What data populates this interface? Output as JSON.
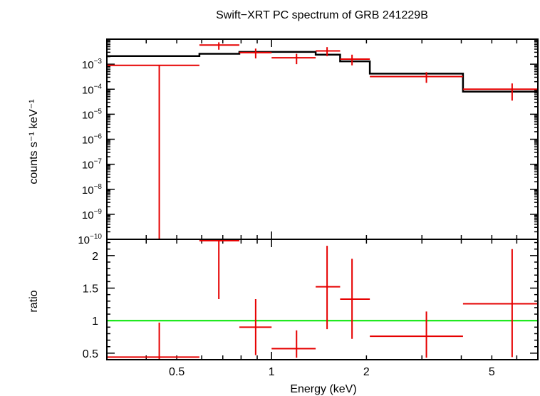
{
  "chart_data": [
    {
      "type": "scatter",
      "panel": "spectrum",
      "title": "Swift−XRT PC spectrum of GRB 241229B",
      "ylabel": "counts s⁻¹ keV⁻¹",
      "xscale": "log",
      "yscale": "log",
      "xlim": [
        0.3,
        7.0
      ],
      "ylim": [
        1e-10,
        0.01
      ],
      "y_ticks": [
        {
          "value": 0.001,
          "mant": "10",
          "exp": "−3"
        },
        {
          "value": 0.0001,
          "mant": "10",
          "exp": "−4"
        },
        {
          "value": 1e-05,
          "mant": "10",
          "exp": "−5"
        },
        {
          "value": 1e-06,
          "mant": "10",
          "exp": "−6"
        },
        {
          "value": 1e-07,
          "mant": "10",
          "exp": "−7"
        },
        {
          "value": 1e-08,
          "mant": "10",
          "exp": "−8"
        },
        {
          "value": 1e-09,
          "mant": "10",
          "exp": "−9"
        },
        {
          "value": 1e-10,
          "mant": "10",
          "exp": "−10"
        }
      ],
      "data": [
        {
          "x": 0.44,
          "xlo": 0.3,
          "xhi": 0.59,
          "y": 0.0009,
          "ylo": 1e-10,
          "yhi": 0.0009
        },
        {
          "x": 0.68,
          "xlo": 0.59,
          "xhi": 0.79,
          "y": 0.0058,
          "ylo": 0.0038,
          "yhi": 0.0075
        },
        {
          "x": 0.89,
          "xlo": 0.79,
          "xhi": 1.0,
          "y": 0.0029,
          "ylo": 0.0017,
          "yhi": 0.0042
        },
        {
          "x": 1.2,
          "xlo": 1.0,
          "xhi": 1.38,
          "y": 0.0018,
          "ylo": 0.001,
          "yhi": 0.0026
        },
        {
          "x": 1.5,
          "xlo": 1.38,
          "xhi": 1.65,
          "y": 0.0034,
          "ylo": 0.0021,
          "yhi": 0.0048
        },
        {
          "x": 1.8,
          "xlo": 1.65,
          "xhi": 2.05,
          "y": 0.0016,
          "ylo": 0.0009,
          "yhi": 0.0024
        },
        {
          "x": 3.1,
          "xlo": 2.05,
          "xhi": 4.05,
          "y": 0.00032,
          "ylo": 0.00018,
          "yhi": 0.00048
        },
        {
          "x": 5.8,
          "xlo": 4.05,
          "xhi": 7.0,
          "y": 0.0001,
          "ylo": 3.5e-05,
          "yhi": 0.00017
        }
      ],
      "model_steps": [
        {
          "xlo": 0.3,
          "xhi": 0.59,
          "y": 0.0021
        },
        {
          "xlo": 0.59,
          "xhi": 0.79,
          "y": 0.0026
        },
        {
          "xlo": 0.79,
          "xhi": 1.0,
          "y": 0.0031
        },
        {
          "xlo": 1.0,
          "xhi": 1.38,
          "y": 0.0031
        },
        {
          "xlo": 1.38,
          "xhi": 1.65,
          "y": 0.0024
        },
        {
          "xlo": 1.65,
          "xhi": 2.05,
          "y": 0.0013
        },
        {
          "xlo": 2.05,
          "xhi": 4.05,
          "y": 0.00042
        },
        {
          "xlo": 4.05,
          "xhi": 7.0,
          "y": 8e-05
        }
      ],
      "colors": {
        "data": "#e60000",
        "model": "#000000"
      }
    },
    {
      "type": "scatter",
      "panel": "ratio",
      "xlabel": "Energy (keV)",
      "ylabel": "ratio",
      "xscale": "log",
      "xlim": [
        0.3,
        7.0
      ],
      "ylim": [
        0.4,
        2.25
      ],
      "x_ticks": [
        {
          "value": 0.5,
          "label": "0.5"
        },
        {
          "value": 1,
          "label": "1"
        },
        {
          "value": 2,
          "label": "2"
        },
        {
          "value": 5,
          "label": "5"
        }
      ],
      "y_ticks": [
        {
          "value": 0.5,
          "label": "0.5"
        },
        {
          "value": 1,
          "label": "1"
        },
        {
          "value": 1.5,
          "label": "1.5"
        },
        {
          "value": 2,
          "label": "2"
        }
      ],
      "reference_line": 1,
      "data": [
        {
          "x": 0.44,
          "xlo": 0.3,
          "xhi": 0.59,
          "y": 0.44,
          "ylo": 0.4,
          "yhi": 0.97
        },
        {
          "x": 0.68,
          "xlo": 0.59,
          "xhi": 0.79,
          "y": 2.23,
          "ylo": 1.33,
          "yhi": 2.25
        },
        {
          "x": 0.89,
          "xlo": 0.79,
          "xhi": 1.0,
          "y": 0.9,
          "ylo": 0.47,
          "yhi": 1.33
        },
        {
          "x": 1.2,
          "xlo": 1.0,
          "xhi": 1.38,
          "y": 0.57,
          "ylo": 0.43,
          "yhi": 0.85
        },
        {
          "x": 1.5,
          "xlo": 1.38,
          "xhi": 1.65,
          "y": 1.52,
          "ylo": 0.87,
          "yhi": 2.15
        },
        {
          "x": 1.8,
          "xlo": 1.65,
          "xhi": 2.05,
          "y": 1.33,
          "ylo": 0.72,
          "yhi": 1.95
        },
        {
          "x": 3.1,
          "xlo": 2.05,
          "xhi": 4.05,
          "y": 0.76,
          "ylo": 0.43,
          "yhi": 1.14
        },
        {
          "x": 5.8,
          "xlo": 4.05,
          "xhi": 7.0,
          "y": 1.26,
          "ylo": 0.44,
          "yhi": 2.1
        }
      ],
      "colors": {
        "data": "#e60000",
        "reference": "#00e600"
      }
    }
  ]
}
